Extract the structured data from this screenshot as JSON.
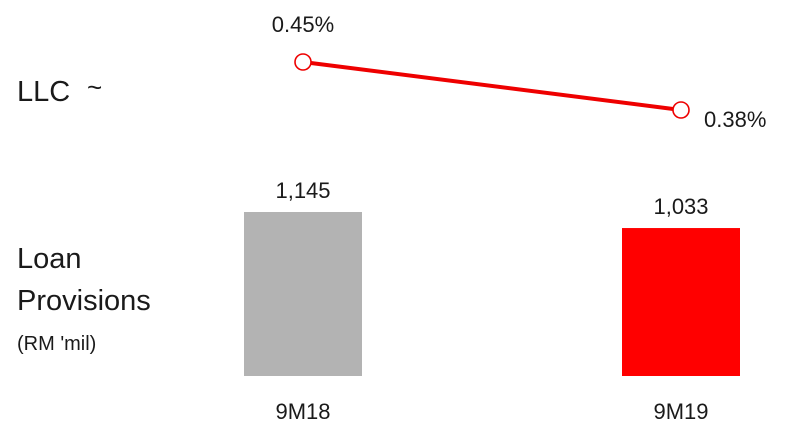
{
  "labels": {
    "line_row": "LLC",
    "line_row_marker": "~",
    "bar_row_line1": "Loan",
    "bar_row_line2": "Provisions",
    "bar_row_unit": "(RM 'mil)"
  },
  "colors": {
    "bar_prior": "#b3b3b3",
    "bar_current": "#ff0000",
    "line": "#ee0000",
    "marker_fill": "#ffffff"
  },
  "chart_data": [
    {
      "type": "line",
      "title": "LLC",
      "categories": [
        "9M18",
        "9M19"
      ],
      "values": [
        0.45,
        0.38
      ],
      "value_labels": [
        "0.45%",
        "0.38%"
      ],
      "unit": "%"
    },
    {
      "type": "bar",
      "title": "Loan Provisions",
      "ylabel": "(RM 'mil)",
      "categories": [
        "9M18",
        "9M19"
      ],
      "values": [
        1145,
        1033
      ],
      "value_labels": [
        "1,145",
        "1,033"
      ],
      "ylim": [
        0,
        1145
      ]
    }
  ]
}
